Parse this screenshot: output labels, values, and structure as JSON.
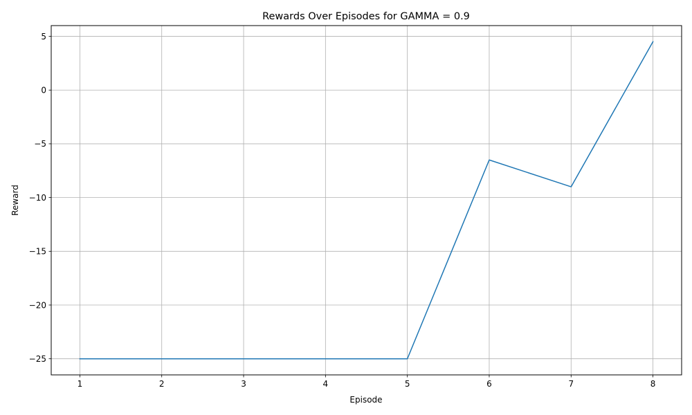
{
  "chart_data": {
    "type": "line",
    "title": "Rewards Over Episodes for GAMMA = 0.9",
    "xlabel": "Episode",
    "ylabel": "Reward",
    "x": [
      1,
      2,
      3,
      4,
      5,
      6,
      7,
      8
    ],
    "series": [
      {
        "values": [
          -25,
          -25,
          -25,
          -25,
          -25,
          -6.5,
          -9,
          4.5
        ],
        "color": "#1f77b4"
      }
    ],
    "xlim": [
      0.65,
      8.35
    ],
    "ylim": [
      -26.5,
      6
    ],
    "xticks": [
      1,
      2,
      3,
      4,
      5,
      6,
      7,
      8
    ],
    "xtick_labels": [
      "1",
      "2",
      "3",
      "4",
      "5",
      "6",
      "7",
      "8"
    ],
    "yticks": [
      5,
      0,
      -5,
      -10,
      -15,
      -20,
      -25
    ],
    "ytick_labels": [
      "5",
      "0",
      "−5",
      "−10",
      "−15",
      "−20",
      "−25"
    ],
    "grid": true,
    "legend": "none"
  }
}
